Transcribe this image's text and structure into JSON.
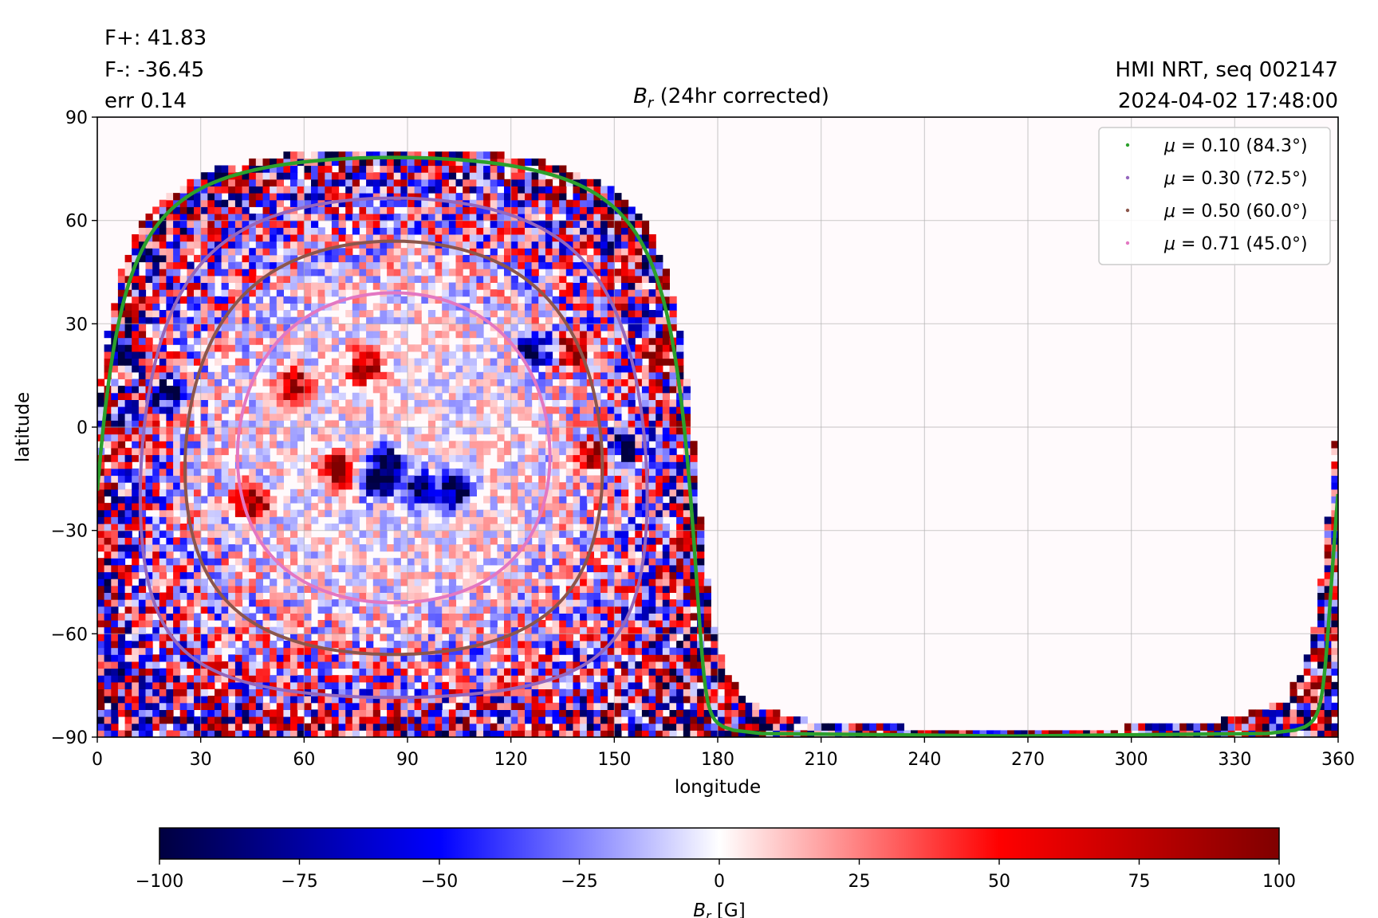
{
  "header": {
    "flux_pos": "F+: 41.83",
    "flux_neg": "F-: -36.45",
    "error": "err 0.14",
    "source": "HMI NRT, seq 002147",
    "timestamp": "2024-04-02 17:48:00"
  },
  "chart_data": {
    "type": "heatmap",
    "title_symbol": "B",
    "title_subscript": "r",
    "title_rest": " (24hr corrected)",
    "xlabel": "longitude",
    "ylabel": "latitude",
    "xlim": [
      0,
      360
    ],
    "ylim": [
      -90,
      90
    ],
    "xticks": [
      0,
      30,
      60,
      90,
      120,
      150,
      180,
      210,
      240,
      270,
      300,
      330,
      360
    ],
    "yticks": [
      -90,
      -60,
      -30,
      0,
      30,
      60,
      90
    ],
    "xtick_labels": [
      "0",
      "30",
      "60",
      "90",
      "120",
      "150",
      "180",
      "210",
      "240",
      "270",
      "300",
      "330",
      "360"
    ],
    "ytick_labels": [
      "−90",
      "−60",
      "−30",
      "0",
      "30",
      "60",
      "90"
    ],
    "grid": true,
    "disk_center": {
      "lon": 86,
      "lat": -6
    },
    "legend_position": "top-right",
    "legend": [
      {
        "label_mu": "μ",
        "label_rest": " = 0.10 (84.3°)",
        "color": "#2ca02c",
        "angle_deg": 84.3
      },
      {
        "label_mu": "μ",
        "label_rest": " = 0.30 (72.5°)",
        "color": "#9467bd",
        "angle_deg": 72.5
      },
      {
        "label_mu": "μ",
        "label_rest": " = 0.50 (60.0°)",
        "color": "#8c564b",
        "angle_deg": 60.0
      },
      {
        "label_mu": "μ",
        "label_rest": " = 0.71 (45.0°)",
        "color": "#e377c2",
        "angle_deg": 45.0
      }
    ],
    "active_regions": [
      {
        "lon": 8,
        "lat": 20,
        "polarity": -1
      },
      {
        "lon": 22,
        "lat": 10,
        "polarity": -1
      },
      {
        "lon": 45,
        "lat": -22,
        "polarity": 1
      },
      {
        "lon": 57,
        "lat": 12,
        "polarity": 1
      },
      {
        "lon": 70,
        "lat": -12,
        "polarity": 1
      },
      {
        "lon": 78,
        "lat": 18,
        "polarity": 1
      },
      {
        "lon": 81,
        "lat": -16,
        "polarity": -1
      },
      {
        "lon": 84,
        "lat": -11,
        "polarity": -1
      },
      {
        "lon": 94,
        "lat": -18,
        "polarity": -1
      },
      {
        "lon": 104,
        "lat": -18,
        "polarity": -1
      },
      {
        "lon": 127,
        "lat": 22,
        "polarity": -1
      },
      {
        "lon": 138,
        "lat": 22,
        "polarity": 1
      },
      {
        "lon": 145,
        "lat": -8,
        "polarity": 1
      },
      {
        "lon": 152,
        "lat": -6,
        "polarity": -1
      },
      {
        "lon": 164,
        "lat": 22,
        "polarity": 1
      }
    ],
    "colorbar": {
      "label_symbol": "B",
      "label_subscript": "r",
      "label_rest": " [G]",
      "range": [
        -100,
        100
      ],
      "ticks": [
        -100,
        -75,
        -50,
        -25,
        0,
        25,
        50,
        75,
        100
      ],
      "tick_labels": [
        "−100",
        "−75",
        "−50",
        "−25",
        "0",
        "25",
        "50",
        "75",
        "100"
      ],
      "colors": [
        "#000040",
        "#0000ff",
        "#ffffff",
        "#ff0000",
        "#800000"
      ]
    }
  }
}
